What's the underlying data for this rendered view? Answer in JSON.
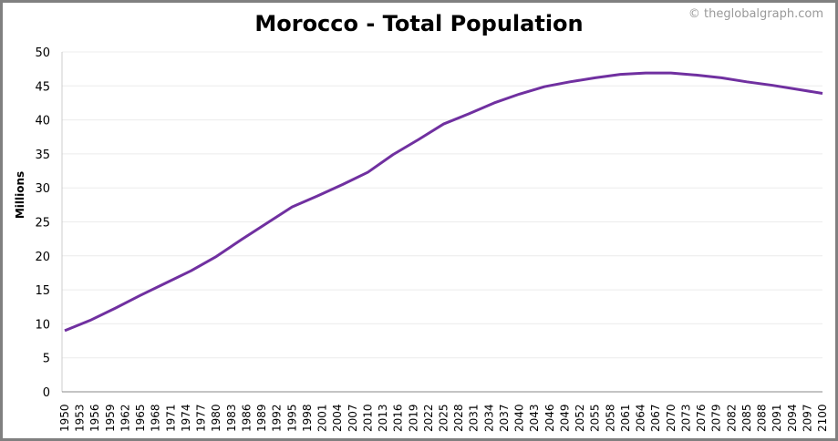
{
  "chart_data": {
    "type": "line",
    "title": "Morocco - Total Population",
    "credit": "© theglobalgraph.com",
    "xlabel": "",
    "ylabel": "Millions",
    "ylim": [
      0,
      50
    ],
    "yticks": [
      0,
      5,
      10,
      15,
      20,
      25,
      30,
      35,
      40,
      45,
      50
    ],
    "xlim": [
      1950,
      2100
    ],
    "xtick_step": 3,
    "grid": true,
    "line_color": "#7030a0",
    "series": [
      {
        "name": "Total Population",
        "x": [
          1950,
          1955,
          1960,
          1965,
          1970,
          1975,
          1980,
          1985,
          1990,
          1995,
          2000,
          2005,
          2010,
          2015,
          2020,
          2025,
          2030,
          2035,
          2040,
          2045,
          2050,
          2055,
          2060,
          2065,
          2070,
          2075,
          2080,
          2085,
          2090,
          2095,
          2100
        ],
        "values": [
          9.0,
          10.5,
          12.3,
          14.2,
          16.0,
          17.8,
          19.9,
          22.4,
          24.8,
          27.2,
          28.8,
          30.5,
          32.3,
          34.9,
          37.1,
          39.4,
          40.9,
          42.5,
          43.8,
          44.9,
          45.6,
          46.2,
          46.7,
          46.9,
          46.9,
          46.6,
          46.2,
          45.6,
          45.1,
          44.5,
          43.9
        ]
      }
    ]
  }
}
